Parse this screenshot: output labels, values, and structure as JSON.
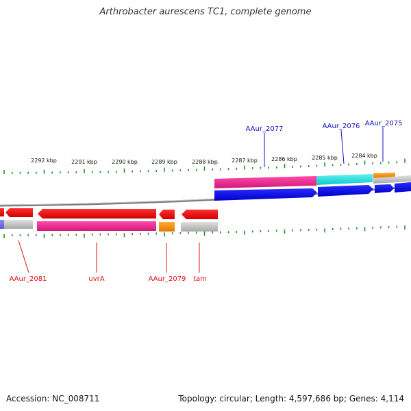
{
  "title": "Arthrobacter aurescens TC1, complete genome",
  "footer": {
    "accession": "Accession: NC_008711",
    "topology": "Topology: circular; Length: 4,597,686 bp; Genes: 4,114"
  },
  "colors": {
    "backbone": "#8a8a8a",
    "tick": "#2e8b2e",
    "label_forward": "#1010c0",
    "label_reverse": "#e01010"
  },
  "scale_labels": [
    "2292 kbp",
    "2291 kbp",
    "2290 kbp",
    "2289 kbp",
    "2288 kbp",
    "2287 kbp",
    "2286 kbp",
    "2285 kbp",
    "2284 kbp"
  ],
  "gene_labels_forward": [
    "AAur_2077",
    "AAur_2076",
    "AAur_2075"
  ],
  "gene_labels_reverse": [
    "AAur_2081",
    "uvrA",
    "AAur_2079",
    "tam"
  ]
}
